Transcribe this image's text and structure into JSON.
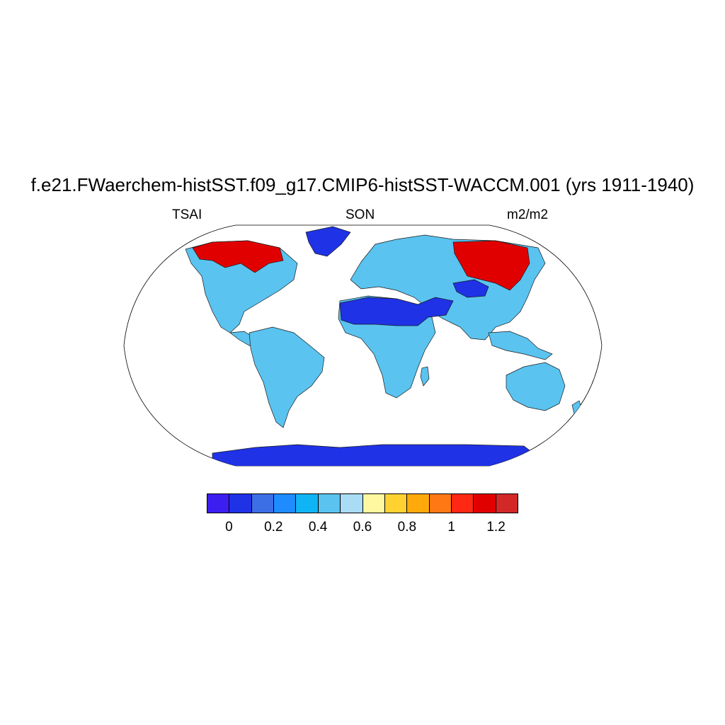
{
  "title": "f.e21.FWaerchem-histSST.f09_g17.CMIP6-histSST-WACCM.001 (yrs 1911-1940)",
  "left_label": "TSAI",
  "center_label": "SON",
  "right_label": "m2/m2",
  "projection": "robinson",
  "colorbar": {
    "colors": [
      "#3c1ef0",
      "#1f32e6",
      "#3c6ee6",
      "#1e8cff",
      "#0fb4f5",
      "#5ac3f0",
      "#aadcf5",
      "#fff8a0",
      "#ffd232",
      "#ffaa0a",
      "#ff7814",
      "#ff2814",
      "#e10000",
      "#d22828"
    ],
    "tick_labels": [
      "0",
      "0.2",
      "0.4",
      "0.6",
      "0.8",
      "1",
      "1.2"
    ]
  },
  "regions": {
    "antarctica": "#1f32e6",
    "greenland": "#1f32e6",
    "sahara_arabia": "#1f32e6",
    "north_america": "#5ac3f0",
    "canada_arctic": "#e10000",
    "siberia": "#e10000",
    "tibet": "#1f32e6",
    "south_america": "#5ac3f0",
    "africa": "#5ac3f0",
    "australia": "#5ac3f0",
    "europe_asia": "#5ac3f0"
  }
}
